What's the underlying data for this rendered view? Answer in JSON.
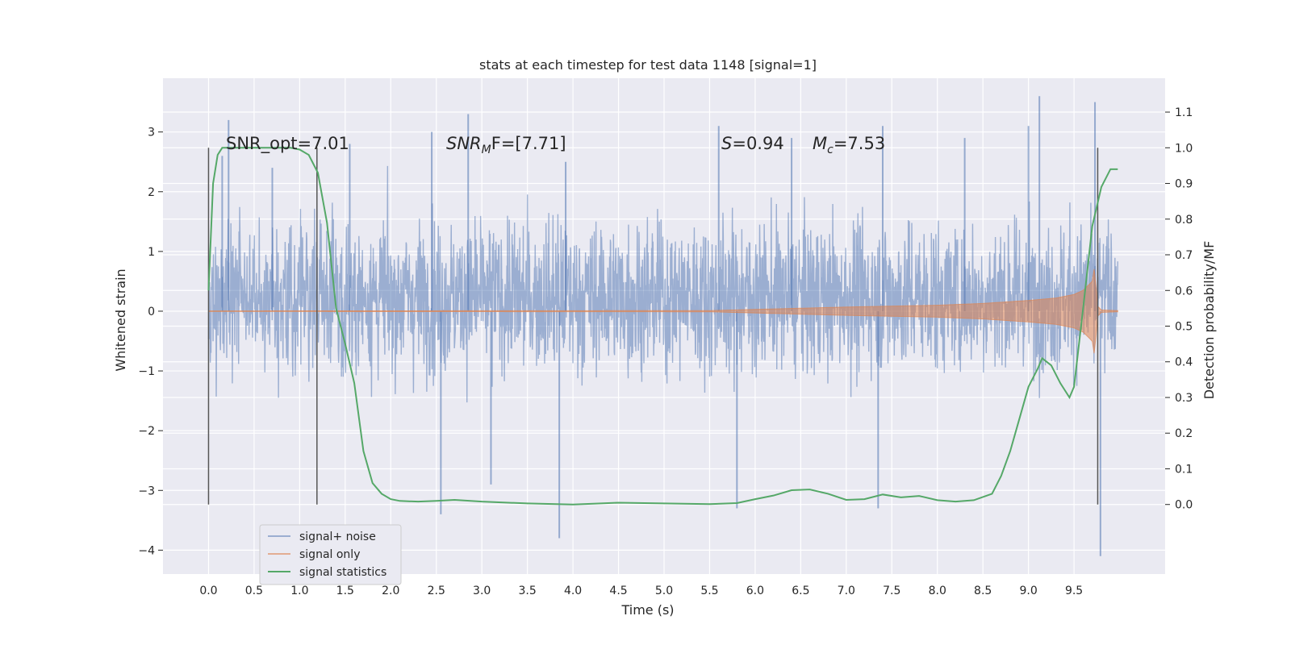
{
  "chart_data": {
    "type": "line",
    "title": "stats at each timestep for test data 1148 [signal=1]",
    "xlabel": "Time (s)",
    "ylabel": "Whitened strain",
    "y2label": "Detection probability/MF",
    "xlim": [
      -0.5,
      10.5
    ],
    "ylim": [
      -4.4,
      3.9
    ],
    "y2lim": [
      -0.195,
      1.195
    ],
    "x_ticks": [
      "0.0",
      "0.5",
      "1.0",
      "1.5",
      "2.0",
      "2.5",
      "3.0",
      "3.5",
      "4.0",
      "4.5",
      "5.0",
      "5.5",
      "6.0",
      "6.5",
      "7.0",
      "7.5",
      "8.0",
      "8.5",
      "9.0",
      "9.5"
    ],
    "y_ticks": [
      "3",
      "2",
      "1",
      "0",
      "−1",
      "−2",
      "−3",
      "−4"
    ],
    "y2_ticks": [
      "1.1",
      "1.0",
      "0.9",
      "0.8",
      "0.7",
      "0.6",
      "0.5",
      "0.4",
      "0.3",
      "0.2",
      "0.1",
      "0.0"
    ],
    "grid": true,
    "legend_position": "lower-left",
    "annotations": {
      "snr_opt": "SNR_opt=7.01",
      "snr_mf_base": "SNR",
      "snr_mf_sub": "M",
      "snr_mf_rest": "F=[7.71]",
      "s_symbol": "S",
      "s_value": "=0.94",
      "mc_symbol": "M",
      "mc_sub": "c",
      "mc_value": "=7.53"
    },
    "vertical_markers": [
      0.0,
      1.19,
      9.76
    ],
    "series": [
      {
        "name": "signal+ noise",
        "color": "#4c72b0",
        "description_level": "noise envelope approx ±1.7 with peaks to 3.6 and −4.1",
        "envelope": {
          "x": [
            0.0,
            9.5,
            9.98
          ],
          "upper_typical": 2.2,
          "lower_typical": -1.8
        },
        "peaks": {
          "x": [
            0.15,
            0.22,
            0.7,
            1.55,
            2.45,
            2.55,
            2.85,
            3.1,
            3.85,
            3.92,
            5.6,
            5.8,
            6.4,
            7.35,
            7.4,
            8.3,
            9.0,
            9.12,
            9.73,
            9.79
          ],
          "y": [
            2.6,
            3.2,
            2.4,
            2.8,
            3.0,
            -3.4,
            3.3,
            -2.9,
            -3.8,
            2.5,
            3.1,
            -3.3,
            2.9,
            -3.3,
            3.1,
            2.9,
            3.1,
            3.6,
            3.5,
            -4.1
          ]
        }
      },
      {
        "name": "signal only",
        "color": "#dd8452",
        "x": [
          0.0,
          5.5,
          6.0,
          7.0,
          8.0,
          8.5,
          9.0,
          9.3,
          9.5,
          9.6,
          9.7,
          9.73,
          9.75,
          9.8,
          9.98
        ],
        "amplitude": [
          0.005,
          0.01,
          0.03,
          0.07,
          0.1,
          0.13,
          0.18,
          0.22,
          0.28,
          0.35,
          0.5,
          0.8,
          0.1,
          0.02,
          0.01
        ]
      },
      {
        "name": "signal statistics",
        "color": "#55a868",
        "x": [
          0.0,
          0.05,
          0.1,
          0.15,
          0.2,
          0.3,
          0.5,
          0.7,
          0.9,
          1.0,
          1.1,
          1.2,
          1.3,
          1.4,
          1.5,
          1.6,
          1.7,
          1.8,
          1.9,
          2.0,
          2.1,
          2.3,
          2.5,
          2.7,
          3.0,
          3.5,
          4.0,
          4.5,
          5.0,
          5.5,
          5.8,
          6.0,
          6.2,
          6.4,
          6.6,
          6.8,
          7.0,
          7.2,
          7.4,
          7.6,
          7.8,
          8.0,
          8.2,
          8.4,
          8.6,
          8.7,
          8.8,
          8.9,
          9.0,
          9.1,
          9.15,
          9.25,
          9.35,
          9.45,
          9.5,
          9.6,
          9.7,
          9.8,
          9.9,
          9.98
        ],
        "y": [
          0.6,
          0.9,
          0.98,
          1.0,
          1.0,
          1.0,
          1.0,
          1.0,
          1.0,
          0.995,
          0.98,
          0.93,
          0.79,
          0.55,
          0.45,
          0.34,
          0.15,
          0.06,
          0.03,
          0.015,
          0.01,
          0.008,
          0.01,
          0.013,
          0.008,
          0.003,
          0.0,
          0.005,
          0.003,
          0.001,
          0.004,
          0.015,
          0.025,
          0.04,
          0.042,
          0.03,
          0.013,
          0.015,
          0.028,
          0.02,
          0.024,
          0.012,
          0.008,
          0.012,
          0.03,
          0.08,
          0.15,
          0.24,
          0.33,
          0.38,
          0.41,
          0.39,
          0.34,
          0.3,
          0.33,
          0.55,
          0.78,
          0.89,
          0.94,
          0.94
        ]
      }
    ]
  }
}
